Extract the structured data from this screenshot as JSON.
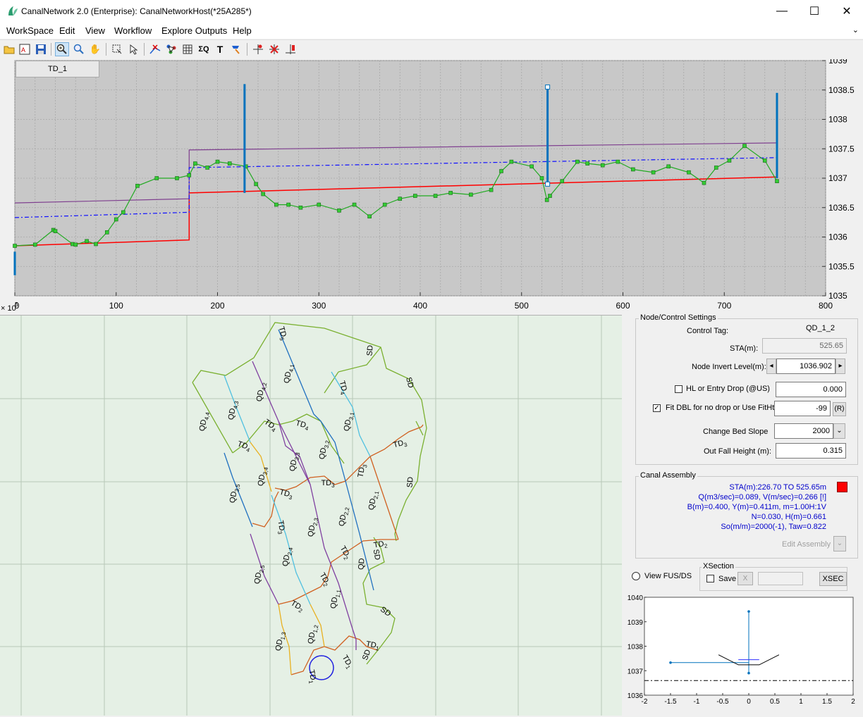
{
  "window": {
    "title": "CanalNetwork 2.0  (Enterprise): CanalNetworkHost(*25A285*)",
    "minimize": "—",
    "maximize": "☐",
    "close": "✕"
  },
  "menu": {
    "items": [
      "WorkSpace",
      "Edit",
      "View",
      "Workflow",
      "Explore Outputs",
      "Help"
    ],
    "chevron": "⌄"
  },
  "toolbar": {
    "icons": [
      "open-folder-icon",
      "open-project-icon",
      "save-icon",
      "zoom-in-icon",
      "zoom-icon",
      "pan-hand-icon",
      "select-node-icon",
      "pointer-add-icon",
      "cut-line-icon",
      "network-icon",
      "grid-icon",
      "sigma-icon",
      "text-icon",
      "paint-icon",
      "add-node-icon",
      "delete-node-icon",
      "split-icon"
    ]
  },
  "profile": {
    "tab_label": "TD_1",
    "x_exponent": "× 10",
    "x_exponent_power": "5"
  },
  "chart_data": [
    {
      "type": "line",
      "title": "",
      "x": [
        0,
        100,
        200,
        300,
        400,
        500,
        600,
        700,
        800
      ],
      "xlim": [
        0,
        800
      ],
      "ylim": [
        1035,
        1039
      ],
      "x_tick_labels": [
        "0",
        "100",
        "200",
        "300",
        "400",
        "500",
        "600",
        "700",
        "800"
      ],
      "y_tick_labels": [
        "1035",
        "1035.5",
        "1036",
        "1036.5",
        "1037",
        "1037.5",
        "1038",
        "1038.5",
        "1039"
      ],
      "grid": true,
      "series": [
        {
          "color": "#ff0000",
          "points": [
            [
              0,
              1035.85
            ],
            [
              172,
              1035.95
            ],
            [
              172,
              1036.75
            ],
            [
              752,
              1037.02
            ]
          ]
        },
        {
          "color": "#7f3f8f",
          "points": [
            [
              0,
              1036.58
            ],
            [
              172,
              1036.65
            ],
            [
              172,
              1037.48
            ],
            [
              752,
              1037.6
            ]
          ]
        },
        {
          "color": "#1010ff",
          "dashed": true,
          "points": [
            [
              0,
              1036.33
            ],
            [
              172,
              1036.42
            ],
            [
              172,
              1037.18
            ],
            [
              752,
              1037.35
            ]
          ]
        },
        {
          "color": "#22aa22",
          "markers": true,
          "points": [
            [
              0,
              1035.85
            ],
            [
              20,
              1035.87
            ],
            [
              38,
              1036.12
            ],
            [
              40,
              1036.1
            ],
            [
              57,
              1035.88
            ],
            [
              60,
              1035.87
            ],
            [
              71,
              1035.93
            ],
            [
              80,
              1035.88
            ],
            [
              91,
              1036.08
            ],
            [
              100,
              1036.3
            ],
            [
              107,
              1036.42
            ],
            [
              121,
              1036.87
            ],
            [
              140,
              1037.0
            ],
            [
              160,
              1037.0
            ],
            [
              172,
              1037.05
            ],
            [
              178,
              1037.25
            ],
            [
              190,
              1037.18
            ],
            [
              200,
              1037.28
            ],
            [
              212,
              1037.25
            ],
            [
              228,
              1037.2
            ],
            [
              238,
              1036.9
            ],
            [
              245,
              1036.73
            ],
            [
              258,
              1036.55
            ],
            [
              270,
              1036.55
            ],
            [
              282,
              1036.5
            ],
            [
              300,
              1036.55
            ],
            [
              320,
              1036.45
            ],
            [
              335,
              1036.55
            ],
            [
              350,
              1036.35
            ],
            [
              365,
              1036.55
            ],
            [
              380,
              1036.65
            ],
            [
              395,
              1036.7
            ],
            [
              415,
              1036.7
            ],
            [
              430,
              1036.75
            ],
            [
              450,
              1036.72
            ],
            [
              470,
              1036.8
            ],
            [
              480,
              1037.12
            ],
            [
              490,
              1037.28
            ],
            [
              510,
              1037.2
            ],
            [
              520,
              1037.0
            ],
            [
              525,
              1036.63
            ],
            [
              528,
              1036.7
            ],
            [
              540,
              1036.95
            ],
            [
              555,
              1037.28
            ],
            [
              565,
              1037.25
            ],
            [
              580,
              1037.22
            ],
            [
              595,
              1037.28
            ],
            [
              610,
              1037.15
            ],
            [
              630,
              1037.1
            ],
            [
              645,
              1037.2
            ],
            [
              665,
              1037.1
            ],
            [
              680,
              1036.92
            ],
            [
              692,
              1037.18
            ],
            [
              705,
              1037.3
            ],
            [
              720,
              1037.55
            ],
            [
              740,
              1037.3
            ],
            [
              752,
              1036.95
            ]
          ]
        },
        {
          "color": "#0072bd",
          "bars": true,
          "points": [
            [
              0,
              1035.35,
              1035.75
            ],
            [
              226.7,
              1036.75,
              1038.6
            ],
            [
              525.65,
              1036.9,
              1038.55
            ],
            [
              752,
              1037.0,
              1038.45
            ]
          ]
        }
      ]
    },
    {
      "type": "line",
      "title": "",
      "xlim": [
        -2,
        2
      ],
      "ylim": [
        1036,
        1040
      ],
      "x_tick_labels": [
        "-2",
        "-1.5",
        "-1",
        "-0.5",
        "0",
        "0.5",
        "1",
        "1.5",
        "2"
      ],
      "y_tick_labels": [
        "1036",
        "1037",
        "1038",
        "1039",
        "1040"
      ],
      "series": [
        {
          "color": "#0072bd",
          "points": [
            [
              -1.5,
              1037.33
            ],
            [
              0,
              1037.33
            ]
          ]
        },
        {
          "color": "#0072bd",
          "points": [
            [
              0,
              1036.9
            ],
            [
              0,
              1039.42
            ]
          ]
        },
        {
          "color": "#000000",
          "points": [
            [
              -0.58,
              1037.65
            ],
            [
              -0.2,
              1037.24
            ],
            [
              0.2,
              1037.24
            ],
            [
              0.58,
              1037.65
            ]
          ]
        },
        {
          "color": "#3030ff",
          "points": [
            [
              -0.2,
              1037.45
            ],
            [
              0.2,
              1037.45
            ]
          ]
        },
        {
          "color": "#000000",
          "dashed": true,
          "points": [
            [
              -2,
              1036.6
            ],
            [
              2,
              1036.6
            ]
          ]
        }
      ]
    }
  ],
  "map": {
    "labels": [
      {
        "text": "TD",
        "sub": "5",
        "x": 398,
        "y": 473,
        "r": 75
      },
      {
        "text": "SD",
        "x": 528,
        "y": 497,
        "r": -85
      },
      {
        "text": "QD",
        "sub": "4,1",
        "x": 412,
        "y": 530,
        "r": -80
      },
      {
        "text": "SD",
        "x": 578,
        "y": 543,
        "r": 75
      },
      {
        "text": "QD",
        "sub": "4,2",
        "x": 373,
        "y": 556,
        "r": -80
      },
      {
        "text": "TD",
        "sub": "4",
        "x": 484,
        "y": 550,
        "r": 75
      },
      {
        "text": "QD",
        "sub": "4,3",
        "x": 333,
        "y": 582,
        "r": -80
      },
      {
        "text": "QD",
        "sub": "3,1",
        "x": 497,
        "y": 598,
        "r": -80
      },
      {
        "text": "QD",
        "sub": "4,4",
        "x": 292,
        "y": 598,
        "r": -80
      },
      {
        "text": "TD",
        "sub": "4",
        "x": 382,
        "y": 605,
        "r": 35
      },
      {
        "text": "TD",
        "sub": "4",
        "x": 428,
        "y": 605,
        "r": 15
      },
      {
        "text": "QD",
        "sub": "3,2",
        "x": 462,
        "y": 638,
        "r": -80
      },
      {
        "text": "TD",
        "sub": "4",
        "x": 345,
        "y": 635,
        "r": 20
      },
      {
        "text": "TD",
        "sub": "3",
        "x": 568,
        "y": 632,
        "r": -15
      },
      {
        "text": "QD",
        "sub": "3,3",
        "x": 420,
        "y": 655,
        "r": -80
      },
      {
        "text": "TD",
        "sub": "3",
        "x": 516,
        "y": 668,
        "r": -80
      },
      {
        "text": "QD",
        "sub": "3,4",
        "x": 375,
        "y": 676,
        "r": -80
      },
      {
        "text": "SD",
        "x": 585,
        "y": 684,
        "r": -85
      },
      {
        "text": "TD",
        "sub": "3",
        "x": 465,
        "y": 688,
        "r": 0
      },
      {
        "text": "QD",
        "sub": "3,5",
        "x": 335,
        "y": 700,
        "r": -80
      },
      {
        "text": "TD",
        "sub": "3",
        "x": 405,
        "y": 703,
        "r": 15
      },
      {
        "text": "QD",
        "sub": "2,1",
        "x": 532,
        "y": 710,
        "r": -80
      },
      {
        "text": "QD",
        "sub": "2,2",
        "x": 490,
        "y": 733,
        "r": -80
      },
      {
        "text": "TD",
        "sub": "3",
        "x": 396,
        "y": 748,
        "r": 80
      },
      {
        "text": "QD",
        "sub": "2,3",
        "x": 446,
        "y": 748,
        "r": -80
      },
      {
        "text": "TD",
        "sub": "2",
        "x": 540,
        "y": 775,
        "r": -10
      },
      {
        "text": "SD",
        "x": 531,
        "y": 787,
        "r": 80
      },
      {
        "text": "TD",
        "sub": "2",
        "x": 487,
        "y": 785,
        "r": 60
      },
      {
        "text": "QD",
        "sub": "2,4",
        "x": 410,
        "y": 790,
        "r": -80
      },
      {
        "text": "QD",
        "x": 516,
        "y": 800,
        "r": -85
      },
      {
        "text": "QD",
        "sub": "2,5",
        "x": 370,
        "y": 815,
        "r": -80
      },
      {
        "text": "TD",
        "sub": "2",
        "x": 458,
        "y": 823,
        "r": 60
      },
      {
        "text": "QD",
        "sub": "1,1",
        "x": 478,
        "y": 850,
        "r": -80
      },
      {
        "text": "TD",
        "sub": "2",
        "x": 420,
        "y": 862,
        "r": 30
      },
      {
        "text": "SD",
        "x": 545,
        "y": 870,
        "r": 35
      },
      {
        "text": "QD",
        "sub": "1,2",
        "x": 446,
        "y": 900,
        "r": -80
      },
      {
        "text": "QD",
        "sub": "1,3",
        "x": 400,
        "y": 910,
        "r": -80
      },
      {
        "text": "TD",
        "sub": "1",
        "x": 528,
        "y": 918,
        "r": 10
      },
      {
        "text": "SD",
        "x": 523,
        "y": 930,
        "r": -70
      },
      {
        "text": "TD",
        "sub": "1",
        "x": 490,
        "y": 940,
        "r": 60
      },
      {
        "text": "TD",
        "sub": "1",
        "x": 440,
        "y": 960,
        "r": 80
      }
    ]
  },
  "node_control": {
    "group_title": "Node/Control Settings",
    "control_tag_label": "Control Tag:",
    "control_tag_value": "QD_1_2",
    "sta_label": "STA(m):",
    "sta_value": "525.65",
    "invert_label": "Node Invert Level(m):",
    "invert_value": "1036.902",
    "spin_left": "◂",
    "spin_right": "▸",
    "hl_label": "HL or Entry Drop (@US)",
    "hl_value": "0.000",
    "hl_checked": false,
    "fit_label": "Fit DBL for no drop or Use FitHt:",
    "fit_value": "-99",
    "fit_checked": true,
    "fit_button": "(R)",
    "slope_label": "Change Bed Slope",
    "slope_value": "2000",
    "outfall_label": "Out Fall Height (m):",
    "outfall_value": "0.315"
  },
  "canal_assembly": {
    "group_title": "Canal Assembly",
    "lines": [
      "STA(m):226.70 TO 525.65m",
      "Q(m3/sec)=0.089, V(m/sec)=0.266 [!]",
      "B(m)=0.400,  Y(m)=0.411m, m=1.00H:1V",
      "N=0.030, H(m)=0.661",
      "So(m/m)=2000(-1),  Taw=0.822"
    ],
    "edit_button": "Edit Assembly",
    "swatch_color": "#ff0000"
  },
  "xsection": {
    "view_label": "View FUS/DS",
    "group_title": "XSection",
    "save_label": "Save",
    "x_button": "X",
    "xsec_button": "XSEC"
  }
}
